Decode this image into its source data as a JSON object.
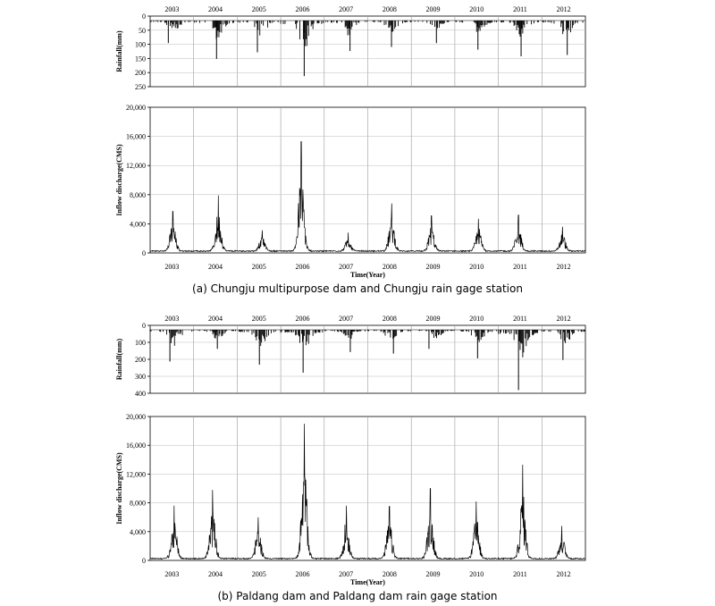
{
  "captions": {
    "a": "(a) Chungju multipurpose dam and Chungju rain gage station",
    "b": "(b) Paldang dam and Paldang dam rain gage station"
  },
  "years": [
    "2003",
    "2004",
    "2005",
    "2006",
    "2007",
    "2008",
    "2009",
    "2010",
    "2011",
    "2012"
  ],
  "chart_data": [
    {
      "panel": "a",
      "type": "bar",
      "role": "rainfall",
      "ylabel": "Rainfall(mm)",
      "inverted_y": true,
      "ylim": [
        0,
        250
      ],
      "yticks": [
        "0",
        "50",
        "100",
        "150",
        "200",
        "250"
      ],
      "xlim": [
        2003,
        2013
      ],
      "peaks_by_year": [
        85,
        145,
        120,
        210,
        115,
        100,
        85,
        110,
        135,
        130
      ]
    },
    {
      "panel": "a",
      "type": "line",
      "role": "inflow",
      "ylabel": "Inflow discharge(CMS)",
      "xlabel": "Time(Year)",
      "ylim": [
        0,
        20000
      ],
      "yticks": [
        "0",
        "4,000",
        "8,000",
        "12,000",
        "16,000",
        "20,000"
      ],
      "xlim": [
        2003,
        2013
      ],
      "peaks_by_year": [
        5700,
        7900,
        3100,
        15300,
        2800,
        6800,
        5100,
        4700,
        5200,
        3600
      ]
    },
    {
      "panel": "b",
      "type": "bar",
      "role": "rainfall",
      "ylabel": "Rainfall(mm)",
      "inverted_y": true,
      "ylim": [
        0,
        400
      ],
      "yticks": [
        "0",
        "100",
        "200",
        "300",
        "400"
      ],
      "xlim": [
        2003,
        2013
      ],
      "peaks_by_year": [
        200,
        120,
        220,
        270,
        140,
        150,
        120,
        180,
        380,
        190
      ]
    },
    {
      "panel": "b",
      "type": "line",
      "role": "inflow",
      "ylabel": "Inflow discharge(CMS)",
      "xlabel": "Time(Year)",
      "ylim": [
        0,
        20000
      ],
      "yticks": [
        "0",
        "4,000",
        "8,000",
        "12,000",
        "16,000",
        "20,000"
      ],
      "xlim": [
        2003,
        2013
      ],
      "peaks_by_year": [
        7600,
        9800,
        6000,
        19000,
        7600,
        7500,
        10000,
        8200,
        13300,
        4800
      ]
    }
  ]
}
